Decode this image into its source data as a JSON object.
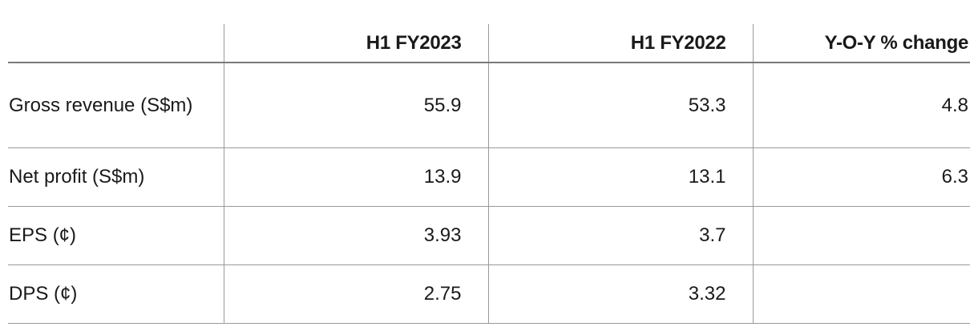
{
  "table": {
    "header": [
      null,
      "H1 FY2023",
      "H1 FY2022",
      "Y-O-Y % change"
    ],
    "rows": [
      [
        "Gross revenue (S$m)",
        "55.9",
        "53.3",
        "4.8"
      ],
      [
        "Net profit (S$m)",
        "13.9",
        "13.1",
        "6.3"
      ],
      [
        "EPS (¢)",
        "3.93",
        "3.7",
        null
      ],
      [
        "DPS (¢)",
        "2.75",
        "3.32",
        null
      ]
    ]
  }
}
